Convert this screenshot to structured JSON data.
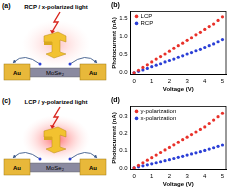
{
  "diagrams": [
    {
      "label": "(a)",
      "light": "RCP / x-polarized light",
      "electrodes": [
        "Au",
        "Au"
      ],
      "material": "MoSe₂"
    },
    {
      "label": "(c)",
      "light": "LCP / y-polarized light",
      "electrodes": [
        "Au",
        "Au"
      ],
      "material": "MoSe₂"
    }
  ],
  "chart_data": [
    {
      "type": "scatter",
      "title": "(b)",
      "x_label": "Voltage (V)",
      "y_label": "Photocurrent (nA)",
      "x": [
        0,
        0.25,
        0.5,
        0.75,
        1,
        1.25,
        1.5,
        1.75,
        2,
        2.25,
        2.5,
        2.75,
        3,
        3.25,
        3.5,
        3.75,
        4,
        4.25,
        4.5,
        4.75,
        5
      ],
      "series": [
        {
          "name": "LCP",
          "color": "#e8312a",
          "marker": "circle",
          "values": [
            0,
            0.07,
            0.15,
            0.22,
            0.3,
            0.38,
            0.45,
            0.52,
            0.6,
            0.68,
            0.75,
            0.82,
            0.9,
            0.97,
            1.05,
            1.12,
            1.2,
            1.28,
            1.35,
            1.45,
            1.55
          ]
        },
        {
          "name": "RCP",
          "color": "#2b3fd6",
          "marker": "circle",
          "values": [
            0,
            0.04,
            0.08,
            0.12,
            0.17,
            0.21,
            0.25,
            0.3,
            0.34,
            0.38,
            0.43,
            0.47,
            0.52,
            0.56,
            0.61,
            0.65,
            0.7,
            0.75,
            0.8,
            0.86,
            0.92
          ]
        }
      ],
      "xlim": [
        -0.2,
        5.2
      ],
      "xticks": [
        0,
        1,
        2,
        3,
        4,
        5
      ],
      "ylim": [
        -0.05,
        1.7
      ],
      "yticks": [
        {
          "value": 0,
          "label": "0.0"
        },
        {
          "value": 0.5,
          "label": "0.5"
        },
        {
          "value": 1,
          "label": "1.0"
        },
        {
          "value": 1.5,
          "label": "1.5"
        }
      ],
      "grid": false,
      "legend": "top-left"
    },
    {
      "type": "scatter",
      "title": "(d)",
      "x_label": "Voltage (V)",
      "y_label": "Photocurrent (nA)",
      "x": [
        0,
        0.25,
        0.5,
        0.75,
        1,
        1.25,
        1.5,
        1.75,
        2,
        2.25,
        2.5,
        2.75,
        3,
        3.25,
        3.5,
        3.75,
        4,
        4.25,
        4.5,
        4.75,
        5
      ],
      "series": [
        {
          "name": "y-polarization",
          "color": "#e8312a",
          "marker": "circle",
          "values": [
            0,
            0.015,
            0.03,
            0.045,
            0.06,
            0.075,
            0.09,
            0.105,
            0.12,
            0.135,
            0.15,
            0.165,
            0.18,
            0.195,
            0.21,
            0.225,
            0.24,
            0.26,
            0.28,
            0.3,
            0.32
          ]
        },
        {
          "name": "x-polarization",
          "color": "#2b3fd6",
          "marker": "circle",
          "values": [
            0,
            0.006,
            0.012,
            0.018,
            0.024,
            0.03,
            0.036,
            0.042,
            0.048,
            0.055,
            0.062,
            0.068,
            0.075,
            0.082,
            0.088,
            0.095,
            0.102,
            0.11,
            0.118,
            0.126,
            0.134
          ]
        }
      ],
      "xlim": [
        -0.2,
        5.2
      ],
      "xticks": [
        0,
        1,
        2,
        3,
        4,
        5
      ],
      "ylim": [
        -0.01,
        0.36
      ],
      "yticks": [
        {
          "value": 0,
          "label": "0.0"
        },
        {
          "value": 0.1,
          "label": "0.1"
        },
        {
          "value": 0.2,
          "label": "0.2"
        },
        {
          "value": 0.3,
          "label": "0.3"
        }
      ],
      "grid": false,
      "legend": "top-left"
    }
  ]
}
